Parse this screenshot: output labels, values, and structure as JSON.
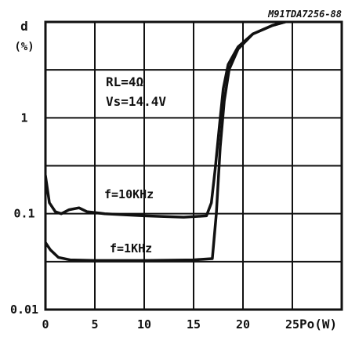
{
  "chart_data": {
    "type": "line",
    "title": "",
    "figure_code": "M91TDA7256-88",
    "xlabel": "Po(W)",
    "ylabel": "d",
    "ylabel_unit": "(%)",
    "xlim": [
      0,
      30
    ],
    "ylim": [
      0.01,
      10
    ],
    "y_scale": "log",
    "grid": true,
    "x_ticks": [
      "0",
      "5",
      "10",
      "15",
      "20",
      "25"
    ],
    "y_ticks": [
      "1",
      "0.1",
      "0.01"
    ],
    "annotation_lines": [
      "RL=4Ω",
      "Vs=14.4V"
    ],
    "series": [
      {
        "name": "f=10KHz",
        "x": [
          0,
          0.4,
          1,
          1.6,
          2.4,
          3.4,
          4.2,
          6,
          10,
          14,
          16.3,
          16.8,
          17.2,
          17.6,
          18.0,
          18.5,
          19.5,
          21,
          23,
          25,
          27
        ],
        "y": [
          0.25,
          0.13,
          0.105,
          0.1,
          0.11,
          0.115,
          0.105,
          0.1,
          0.095,
          0.092,
          0.095,
          0.13,
          0.3,
          0.8,
          2,
          3.6,
          5.5,
          7.5,
          9.2,
          10.5,
          12
        ]
      },
      {
        "name": "f=1KHz",
        "x": [
          0,
          0.5,
          1.3,
          2.5,
          5,
          10,
          15,
          16.9,
          17.3,
          17.7,
          18.1,
          18.6,
          19.5,
          21,
          23,
          25,
          27
        ],
        "y": [
          0.05,
          0.042,
          0.035,
          0.033,
          0.0325,
          0.0325,
          0.033,
          0.034,
          0.1,
          0.5,
          1.5,
          3.2,
          5.2,
          7.5,
          9.2,
          10.5,
          12
        ]
      }
    ]
  }
}
